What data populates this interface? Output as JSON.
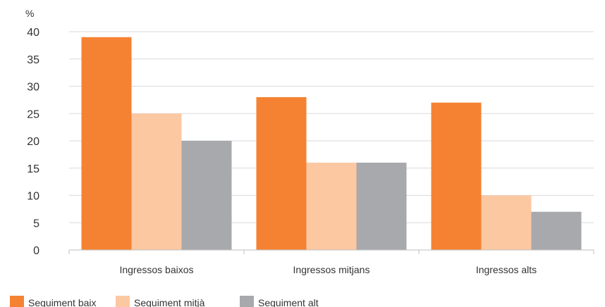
{
  "chart_data": {
    "type": "bar",
    "title": "",
    "xlabel": "",
    "ylabel": "%",
    "ylim": [
      0,
      40
    ],
    "yticks": [
      0,
      5,
      10,
      15,
      20,
      25,
      30,
      35,
      40
    ],
    "grid": true,
    "legend_position": "bottom-left",
    "categories": [
      "Ingressos baixos",
      "Ingressos mitjans",
      "Ingressos alts"
    ],
    "series": [
      {
        "name": "Seguiment baix",
        "color": "#f58232",
        "values": [
          39,
          28,
          27
        ]
      },
      {
        "name": "Seguiment mitjà",
        "color": "#fcc8a2",
        "values": [
          25,
          16,
          10
        ]
      },
      {
        "name": "Seguiment alt",
        "color": "#a7a9ac",
        "values": [
          20,
          16,
          7
        ]
      }
    ]
  }
}
